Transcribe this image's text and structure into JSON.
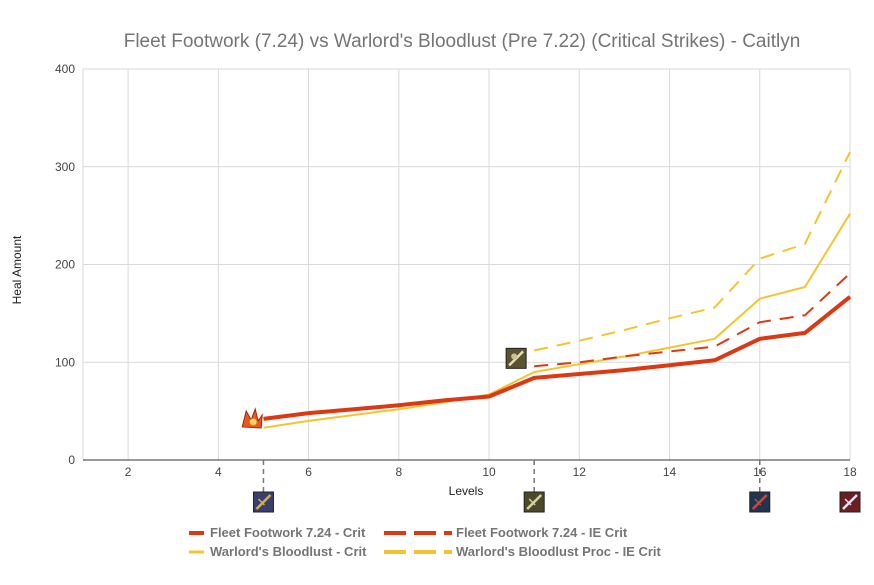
{
  "chart_data": {
    "type": "line",
    "title": "Fleet Footwork (7.24) vs Warlord's Bloodlust (Pre 7.22) (Critical Strikes) - Caitlyn",
    "xlabel": "Levels",
    "ylabel": "Heal Amount",
    "xlim": [
      1,
      18
    ],
    "ylim": [
      0,
      400
    ],
    "xticks": [
      "2",
      "4",
      "6",
      "8",
      "10",
      "12",
      "14",
      "16",
      "18"
    ],
    "yticks": [
      "0",
      "100",
      "200",
      "300",
      "400"
    ],
    "grid": true,
    "legend_position": "bottom",
    "series": [
      {
        "name": "Fleet Footwork 7.24 - Crit",
        "color": "#dc3912",
        "style": "solid",
        "points": [
          [
            5,
            42
          ],
          [
            6,
            48
          ],
          [
            7,
            52
          ],
          [
            8,
            56
          ],
          [
            9,
            61
          ],
          [
            10,
            65
          ],
          [
            11,
            84
          ],
          [
            12,
            88
          ],
          [
            13,
            92
          ],
          [
            14,
            97
          ],
          [
            15,
            102
          ],
          [
            16,
            124
          ],
          [
            17,
            130
          ],
          [
            18,
            167
          ]
        ]
      },
      {
        "name": "Fleet Footwork 7.24 - IE Crit",
        "color": "#dc3912",
        "style": "dashed",
        "points": [
          [
            11,
            96
          ],
          [
            12,
            100
          ],
          [
            13,
            106
          ],
          [
            14,
            111
          ],
          [
            15,
            116
          ],
          [
            16,
            141
          ],
          [
            17,
            148
          ],
          [
            18,
            191
          ]
        ]
      },
      {
        "name": "Warlord's Bloodlust - Crit",
        "color": "#f4c430",
        "style": "solid",
        "points": [
          [
            5,
            33
          ],
          [
            6,
            40
          ],
          [
            7,
            46
          ],
          [
            8,
            52
          ],
          [
            9,
            59
          ],
          [
            10,
            67
          ],
          [
            11,
            90
          ],
          [
            12,
            98
          ],
          [
            13,
            106
          ],
          [
            14,
            115
          ],
          [
            15,
            124
          ],
          [
            16,
            165
          ],
          [
            17,
            177
          ],
          [
            18,
            252
          ]
        ]
      },
      {
        "name": "Warlord's Bloodlust Proc - IE Crit",
        "color": "#f4c430",
        "style": "dashed",
        "points": [
          [
            11,
            112
          ],
          [
            12,
            122
          ],
          [
            13,
            133
          ],
          [
            14,
            145
          ],
          [
            15,
            156
          ],
          [
            16,
            206
          ],
          [
            17,
            221
          ],
          [
            18,
            315
          ]
        ]
      }
    ],
    "item_markers": [
      {
        "level": 5,
        "icon": "item-icon-runaans"
      },
      {
        "level": 11,
        "icon": "item-icon-infinity-edge"
      },
      {
        "level": 16,
        "icon": "item-icon-bloodthirster"
      },
      {
        "level": 18,
        "icon": "item-icon-crit-sword"
      }
    ],
    "line_icons": [
      {
        "level": 4.75,
        "value": 42,
        "icon": "fleet-footwork-icon"
      },
      {
        "level": 10.6,
        "value": 104,
        "icon": "infinity-edge-icon"
      }
    ]
  }
}
